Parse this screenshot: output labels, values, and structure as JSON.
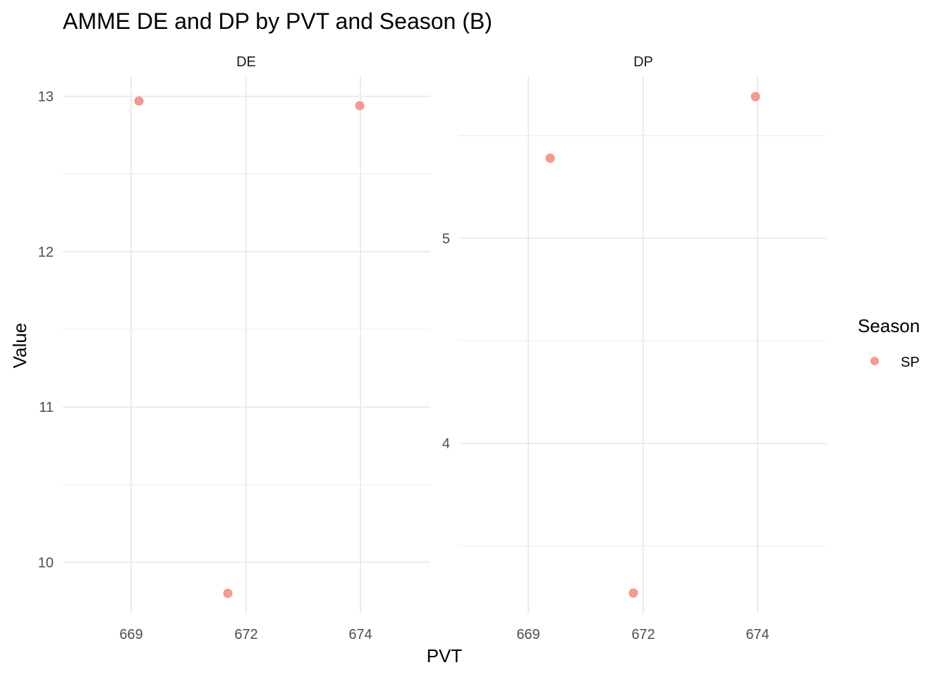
{
  "chart_data": {
    "type": "scatter",
    "title": "AMME DE and DP by PVT and Season (B)",
    "xlabel": "PVT",
    "ylabel": "Value",
    "legend": {
      "title": "Season",
      "placement": "right"
    },
    "series": [
      {
        "name": "SP",
        "color": "#f8766d"
      }
    ],
    "grid": true,
    "facets": [
      {
        "label": "DE",
        "x_ticks": [
          "669",
          "672",
          "674"
        ],
        "y_ticks": [
          "10",
          "11",
          "12",
          "13"
        ],
        "points": [
          {
            "x": "669",
            "y": 12.97,
            "season": "SP"
          },
          {
            "x": "672",
            "y": 9.8,
            "season": "SP"
          },
          {
            "x": "674",
            "y": 12.94,
            "season": "SP"
          }
        ],
        "ylim": [
          9.67,
          13.13
        ]
      },
      {
        "label": "DP",
        "x_ticks": [
          "669",
          "672",
          "674"
        ],
        "y_ticks": [
          "4",
          "5"
        ],
        "points": [
          {
            "x": "669",
            "y": 5.39,
            "season": "SP"
          },
          {
            "x": "672",
            "y": 3.27,
            "season": "SP"
          },
          {
            "x": "674",
            "y": 5.69,
            "season": "SP"
          }
        ],
        "ylim": [
          3.17,
          5.79
        ]
      }
    ]
  }
}
